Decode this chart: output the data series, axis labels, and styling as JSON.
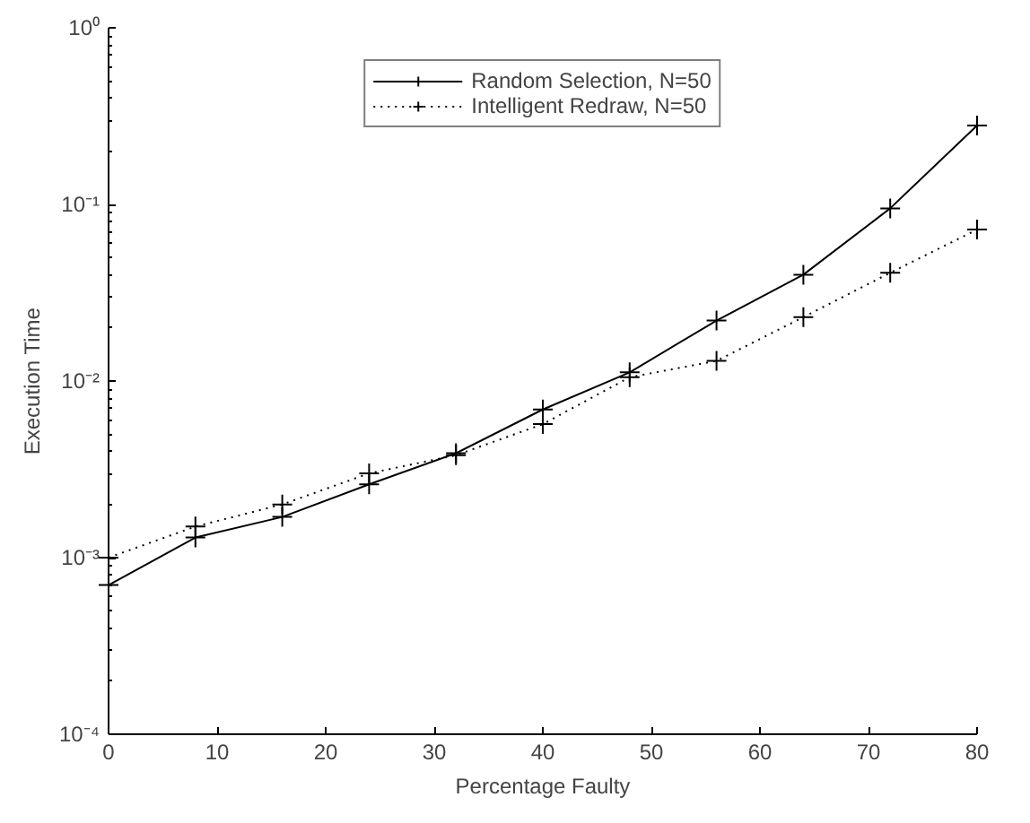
{
  "chart_data": {
    "type": "line",
    "xlabel": "Percentage Faulty",
    "ylabel": "Execution Time",
    "x": [
      0,
      8,
      16,
      24,
      32,
      40,
      48,
      56,
      64,
      72,
      80
    ],
    "series": [
      {
        "name": "Random Selection, N=50",
        "color": "#000000",
        "line_style": "solid",
        "values": [
          0.0007,
          0.0013,
          0.0017,
          0.0026,
          0.0039,
          0.0069,
          0.0112,
          0.022,
          0.04,
          0.095,
          0.28
        ]
      },
      {
        "name": "Intelligent Redraw, N=50",
        "color": "#000000",
        "line_style": "dotted",
        "values": [
          0.001,
          0.0015,
          0.002,
          0.003,
          0.0038,
          0.0057,
          0.0105,
          0.013,
          0.023,
          0.041,
          0.072
        ]
      }
    ],
    "log": "y",
    "marker": "cross",
    "grid": false,
    "legend": "top",
    "xlim": [
      0,
      80
    ],
    "xticks": [
      0,
      10,
      20,
      30,
      40,
      50,
      60,
      70,
      80
    ],
    "ylim": [
      0.0001,
      1
    ],
    "yticks": [
      {
        "value": 0.0001,
        "label": "10⁻⁴"
      },
      {
        "value": 0.001,
        "label": "10⁻³"
      },
      {
        "value": 0.01,
        "label": "10⁻²"
      },
      {
        "value": 0.1,
        "label": "10⁻¹"
      },
      {
        "value": 1,
        "label": "10⁰"
      }
    ]
  }
}
